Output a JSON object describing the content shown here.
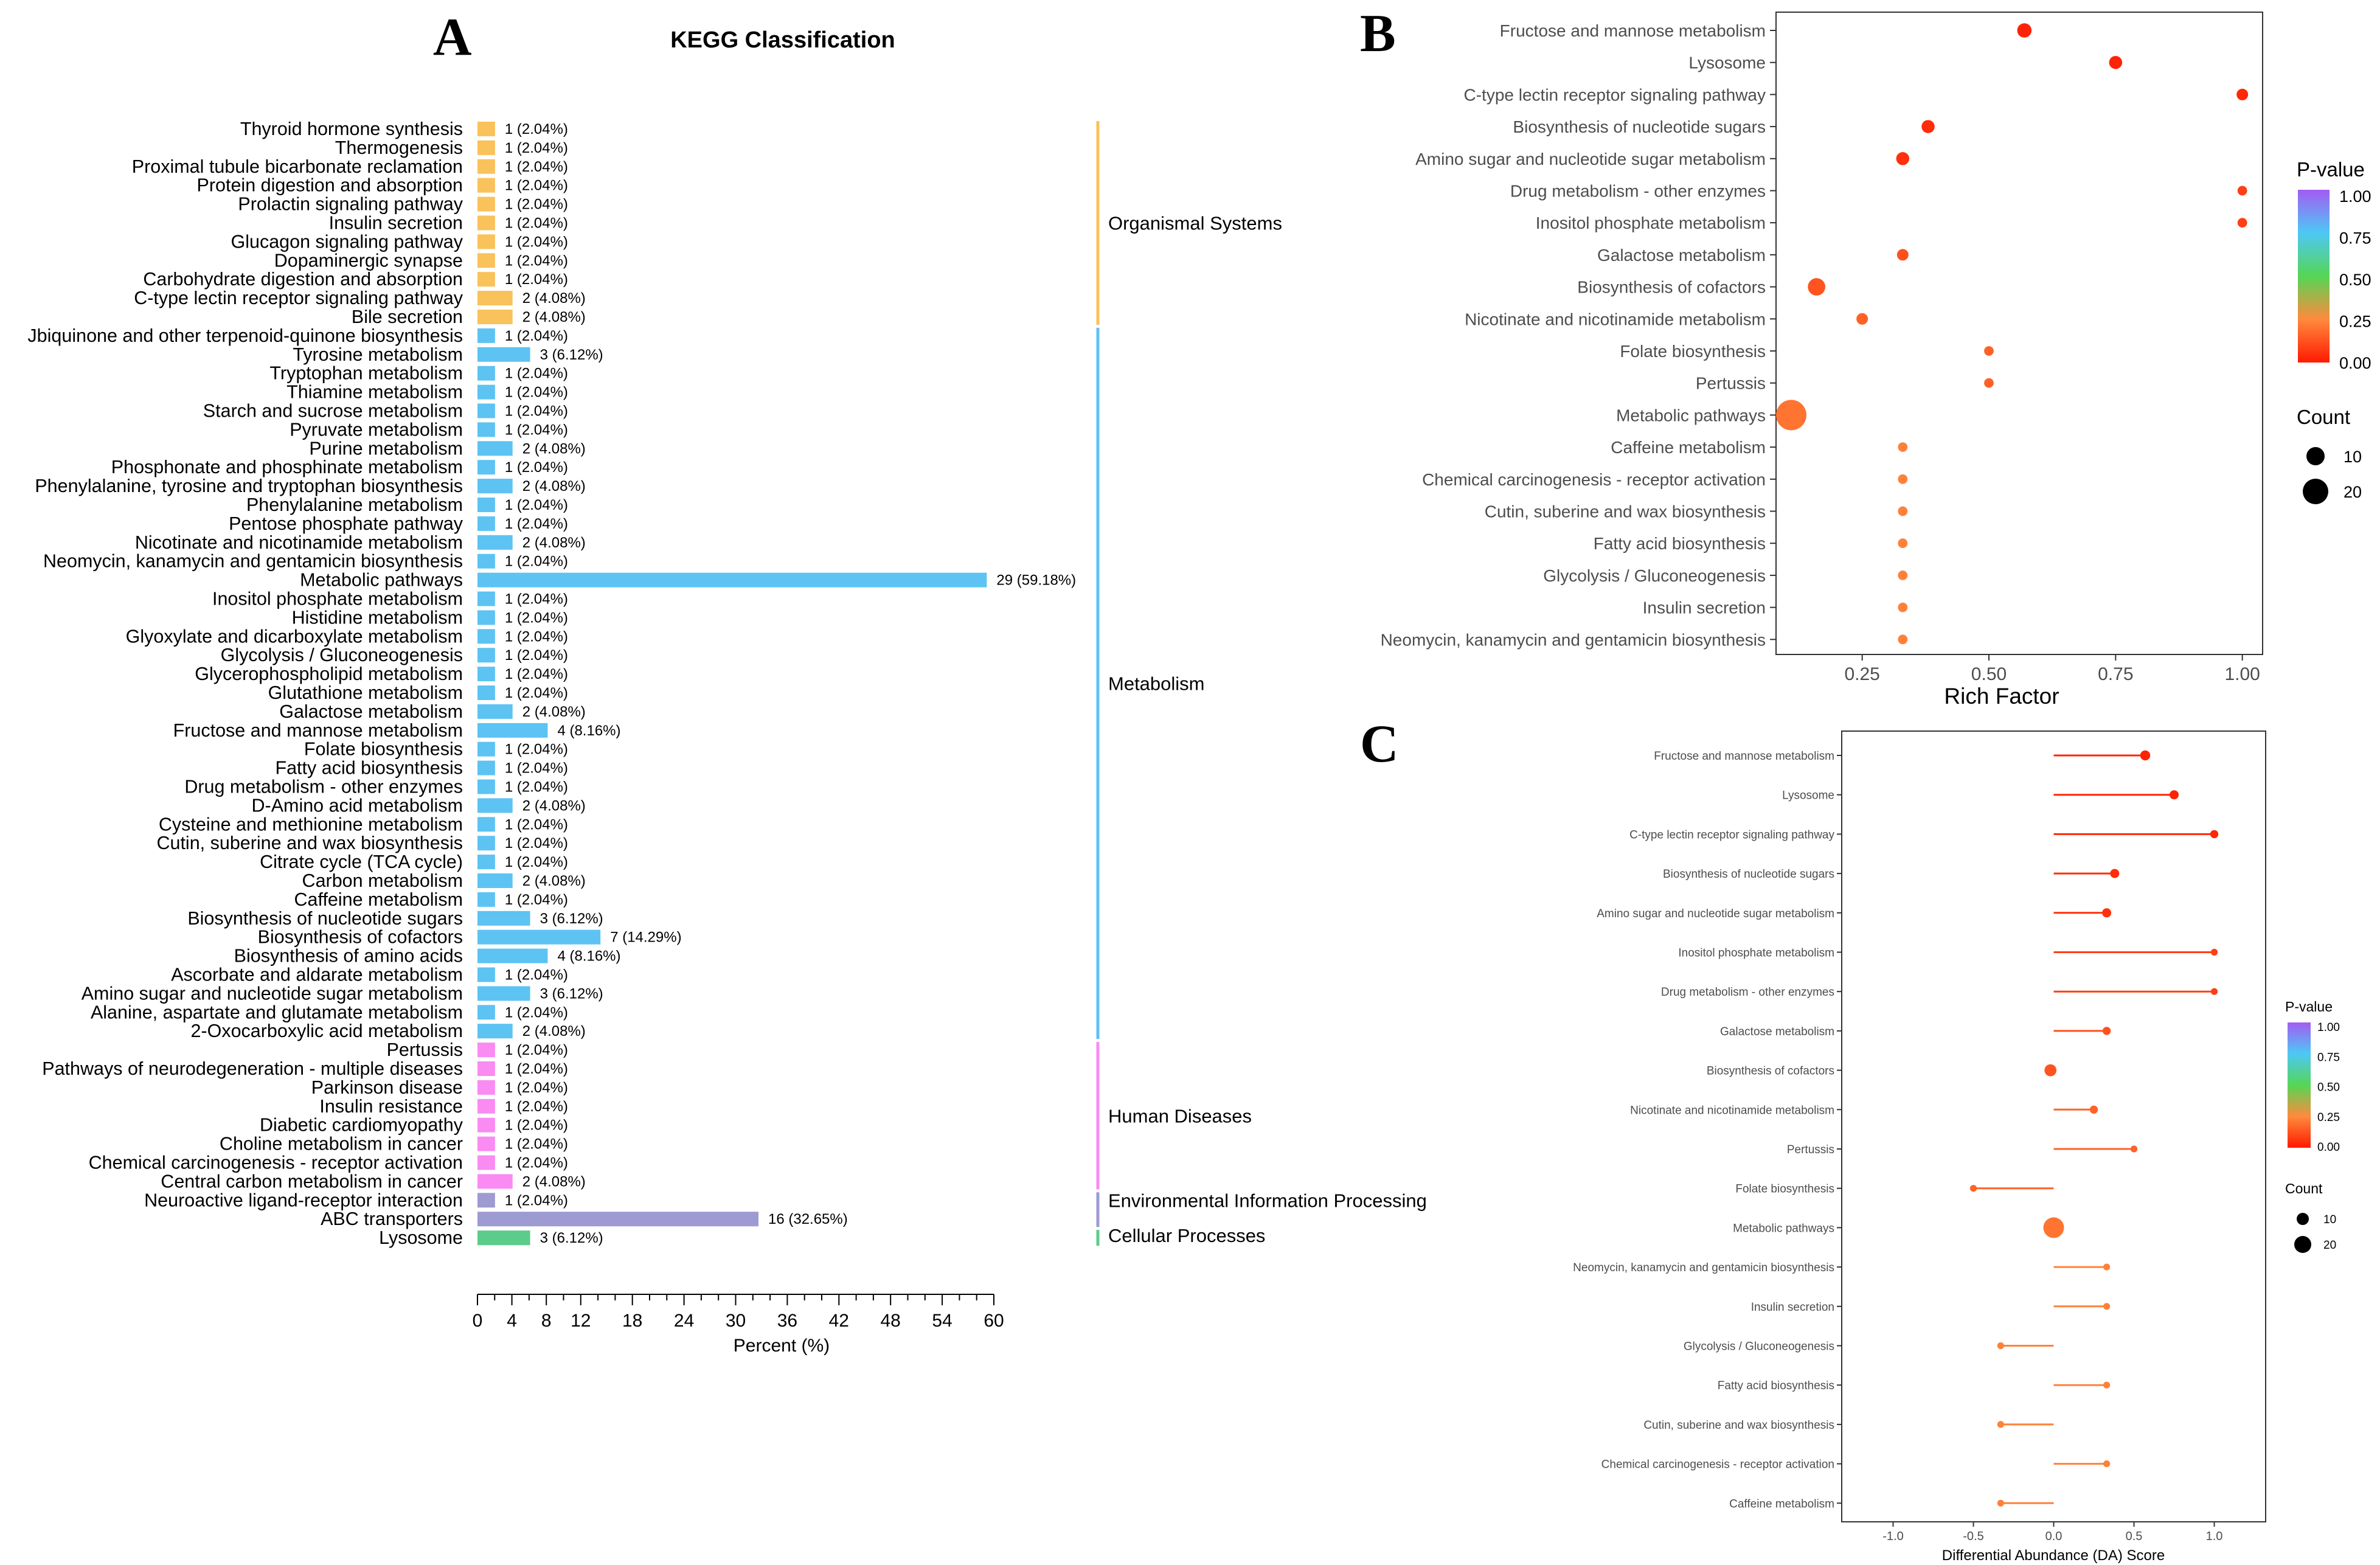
{
  "figure": {
    "letters": [
      "A",
      "B",
      "C"
    ]
  },
  "chart_data": [
    {
      "panel": "A",
      "type": "bar",
      "orientation": "horizontal",
      "title": "KEGG Classification",
      "xlabel": "Percent (%)",
      "xlim": [
        0,
        60
      ],
      "xticks": [
        0,
        4,
        8,
        12,
        18,
        24,
        30,
        36,
        42,
        48,
        54,
        60
      ],
      "colors": {
        "Organismal Systems": "#f9c25a",
        "Metabolism": "#5dc3f3",
        "Human Diseases": "#f98bf2",
        "Environmental Information Processing": "#9e9ad2",
        "Cellular Processes": "#5ccc8a"
      },
      "groups": [
        {
          "name": "Organismal Systems",
          "items": [
            {
              "label": "Thyroid hormone synthesis",
              "value": 2.04,
              "text": "1 (2.04%)"
            },
            {
              "label": "Thermogenesis",
              "value": 2.04,
              "text": "1 (2.04%)"
            },
            {
              "label": "Proximal tubule bicarbonate reclamation",
              "value": 2.04,
              "text": "1 (2.04%)"
            },
            {
              "label": "Protein digestion and absorption",
              "value": 2.04,
              "text": "1 (2.04%)"
            },
            {
              "label": "Prolactin signaling pathway",
              "value": 2.04,
              "text": "1 (2.04%)"
            },
            {
              "label": "Insulin secretion",
              "value": 2.04,
              "text": "1 (2.04%)"
            },
            {
              "label": "Glucagon signaling pathway",
              "value": 2.04,
              "text": "1 (2.04%)"
            },
            {
              "label": "Dopaminergic synapse",
              "value": 2.04,
              "text": "1 (2.04%)"
            },
            {
              "label": "Carbohydrate digestion and absorption",
              "value": 2.04,
              "text": "1 (2.04%)"
            },
            {
              "label": "C-type lectin receptor signaling pathway",
              "value": 4.08,
              "text": "2 (4.08%)"
            },
            {
              "label": "Bile secretion",
              "value": 4.08,
              "text": "2 (4.08%)"
            }
          ]
        },
        {
          "name": "Metabolism",
          "items": [
            {
              "label": "Jbiquinone and other terpenoid-quinone biosynthesis",
              "value": 2.04,
              "text": "1 (2.04%)"
            },
            {
              "label": "Tyrosine metabolism",
              "value": 6.12,
              "text": "3 (6.12%)"
            },
            {
              "label": "Tryptophan metabolism",
              "value": 2.04,
              "text": "1 (2.04%)"
            },
            {
              "label": "Thiamine metabolism",
              "value": 2.04,
              "text": "1 (2.04%)"
            },
            {
              "label": "Starch and sucrose metabolism",
              "value": 2.04,
              "text": "1 (2.04%)"
            },
            {
              "label": "Pyruvate metabolism",
              "value": 2.04,
              "text": "1 (2.04%)"
            },
            {
              "label": "Purine metabolism",
              "value": 4.08,
              "text": "2 (4.08%)"
            },
            {
              "label": "Phosphonate and phosphinate metabolism",
              "value": 2.04,
              "text": "1 (2.04%)"
            },
            {
              "label": "Phenylalanine, tyrosine and tryptophan biosynthesis",
              "value": 4.08,
              "text": "2 (4.08%)"
            },
            {
              "label": "Phenylalanine metabolism",
              "value": 2.04,
              "text": "1 (2.04%)"
            },
            {
              "label": "Pentose phosphate pathway",
              "value": 2.04,
              "text": "1 (2.04%)"
            },
            {
              "label": "Nicotinate and nicotinamide metabolism",
              "value": 4.08,
              "text": "2 (4.08%)"
            },
            {
              "label": "Neomycin, kanamycin and gentamicin biosynthesis",
              "value": 2.04,
              "text": "1 (2.04%)"
            },
            {
              "label": "Metabolic pathways",
              "value": 59.18,
              "text": "29 (59.18%)"
            },
            {
              "label": "Inositol phosphate metabolism",
              "value": 2.04,
              "text": "1 (2.04%)"
            },
            {
              "label": "Histidine metabolism",
              "value": 2.04,
              "text": "1 (2.04%)"
            },
            {
              "label": "Glyoxylate and dicarboxylate metabolism",
              "value": 2.04,
              "text": "1 (2.04%)"
            },
            {
              "label": "Glycolysis / Gluconeogenesis",
              "value": 2.04,
              "text": "1 (2.04%)"
            },
            {
              "label": "Glycerophospholipid metabolism",
              "value": 2.04,
              "text": "1 (2.04%)"
            },
            {
              "label": "Glutathione metabolism",
              "value": 2.04,
              "text": "1 (2.04%)"
            },
            {
              "label": "Galactose metabolism",
              "value": 4.08,
              "text": "2 (4.08%)"
            },
            {
              "label": "Fructose and mannose metabolism",
              "value": 8.16,
              "text": "4 (8.16%)"
            },
            {
              "label": "Folate biosynthesis",
              "value": 2.04,
              "text": "1 (2.04%)"
            },
            {
              "label": "Fatty acid biosynthesis",
              "value": 2.04,
              "text": "1 (2.04%)"
            },
            {
              "label": "Drug metabolism - other enzymes",
              "value": 2.04,
              "text": "1 (2.04%)"
            },
            {
              "label": "D-Amino acid metabolism",
              "value": 4.08,
              "text": "2 (4.08%)"
            },
            {
              "label": "Cysteine and methionine metabolism",
              "value": 2.04,
              "text": "1 (2.04%)"
            },
            {
              "label": "Cutin, suberine and wax biosynthesis",
              "value": 2.04,
              "text": "1 (2.04%)"
            },
            {
              "label": "Citrate cycle (TCA cycle)",
              "value": 2.04,
              "text": "1 (2.04%)"
            },
            {
              "label": "Carbon metabolism",
              "value": 4.08,
              "text": "2 (4.08%)"
            },
            {
              "label": "Caffeine metabolism",
              "value": 2.04,
              "text": "1 (2.04%)"
            },
            {
              "label": "Biosynthesis of nucleotide sugars",
              "value": 6.12,
              "text": "3 (6.12%)"
            },
            {
              "label": "Biosynthesis of cofactors",
              "value": 14.29,
              "text": "7 (14.29%)"
            },
            {
              "label": "Biosynthesis of amino acids",
              "value": 8.16,
              "text": "4 (8.16%)"
            },
            {
              "label": "Ascorbate and aldarate metabolism",
              "value": 2.04,
              "text": "1 (2.04%)"
            },
            {
              "label": "Amino sugar and nucleotide sugar metabolism",
              "value": 6.12,
              "text": "3 (6.12%)"
            },
            {
              "label": "Alanine, aspartate and glutamate metabolism",
              "value": 2.04,
              "text": "1 (2.04%)"
            },
            {
              "label": "2-Oxocarboxylic acid metabolism",
              "value": 4.08,
              "text": "2 (4.08%)"
            }
          ]
        },
        {
          "name": "Human Diseases",
          "items": [
            {
              "label": "Pertussis",
              "value": 2.04,
              "text": "1 (2.04%)"
            },
            {
              "label": "Pathways of neurodegeneration - multiple diseases",
              "value": 2.04,
              "text": "1 (2.04%)"
            },
            {
              "label": "Parkinson disease",
              "value": 2.04,
              "text": "1 (2.04%)"
            },
            {
              "label": "Insulin resistance",
              "value": 2.04,
              "text": "1 (2.04%)"
            },
            {
              "label": "Diabetic cardiomyopathy",
              "value": 2.04,
              "text": "1 (2.04%)"
            },
            {
              "label": "Choline metabolism in cancer",
              "value": 2.04,
              "text": "1 (2.04%)"
            },
            {
              "label": "Chemical carcinogenesis - receptor activation",
              "value": 2.04,
              "text": "1 (2.04%)"
            },
            {
              "label": "Central carbon metabolism in cancer",
              "value": 4.08,
              "text": "2 (4.08%)"
            }
          ]
        },
        {
          "name": "Environmental Information Processing",
          "items": [
            {
              "label": "Neuroactive ligand-receptor interaction",
              "value": 2.04,
              "text": "1 (2.04%)"
            },
            {
              "label": "ABC transporters",
              "value": 32.65,
              "text": "16 (32.65%)"
            }
          ]
        },
        {
          "name": "Cellular Processes",
          "items": [
            {
              "label": "Lysosome",
              "value": 6.12,
              "text": "3 (6.12%)"
            }
          ]
        }
      ]
    },
    {
      "panel": "B",
      "type": "scatter",
      "xlabel": "Rich Factor",
      "xlim": [
        0.08,
        1.04
      ],
      "xticks": [
        "0.25",
        "0.50",
        "0.75",
        "1.00"
      ],
      "legend": {
        "color_title": "P-value",
        "color_ticks": [
          "1.00",
          "0.75",
          "0.50",
          "0.25",
          "0.00"
        ],
        "size_title": "Count",
        "size_ticks": [
          "10",
          "20"
        ]
      },
      "points": [
        {
          "pathway": "Fructose and mannose metabolism",
          "rich": 0.57,
          "count": 4,
          "p": 0.02
        },
        {
          "pathway": "Lysosome",
          "rich": 0.75,
          "count": 3,
          "p": 0.02
        },
        {
          "pathway": "C-type lectin receptor signaling pathway",
          "rich": 1.0,
          "count": 2,
          "p": 0.03
        },
        {
          "pathway": "Biosynthesis of nucleotide sugars",
          "rich": 0.38,
          "count": 3,
          "p": 0.04
        },
        {
          "pathway": "Amino sugar and nucleotide sugar metabolism",
          "rich": 0.33,
          "count": 3,
          "p": 0.05
        },
        {
          "pathway": "Drug metabolism - other enzymes",
          "rich": 1.0,
          "count": 1,
          "p": 0.08
        },
        {
          "pathway": "Inositol phosphate metabolism",
          "rich": 1.0,
          "count": 1,
          "p": 0.08
        },
        {
          "pathway": "Galactose metabolism",
          "rich": 0.33,
          "count": 2,
          "p": 0.12
        },
        {
          "pathway": "Biosynthesis of cofactors",
          "rich": 0.16,
          "count": 7,
          "p": 0.13
        },
        {
          "pathway": "Nicotinate and nicotinamide metabolism",
          "rich": 0.25,
          "count": 2,
          "p": 0.16
        },
        {
          "pathway": "Folate biosynthesis",
          "rich": 0.5,
          "count": 1,
          "p": 0.16
        },
        {
          "pathway": "Pertussis",
          "rich": 0.5,
          "count": 1,
          "p": 0.16
        },
        {
          "pathway": "Metabolic pathways",
          "rich": 0.11,
          "count": 29,
          "p": 0.2
        },
        {
          "pathway": "Caffeine metabolism",
          "rich": 0.33,
          "count": 1,
          "p": 0.23
        },
        {
          "pathway": "Chemical carcinogenesis - receptor activation",
          "rich": 0.33,
          "count": 1,
          "p": 0.23
        },
        {
          "pathway": "Cutin, suberine and wax biosynthesis",
          "rich": 0.33,
          "count": 1,
          "p": 0.23
        },
        {
          "pathway": "Fatty acid biosynthesis",
          "rich": 0.33,
          "count": 1,
          "p": 0.23
        },
        {
          "pathway": "Glycolysis / Gluconeogenesis",
          "rich": 0.33,
          "count": 1,
          "p": 0.23
        },
        {
          "pathway": "Insulin secretion",
          "rich": 0.33,
          "count": 1,
          "p": 0.23
        },
        {
          "pathway": "Neomycin, kanamycin and gentamicin biosynthesis",
          "rich": 0.33,
          "count": 1,
          "p": 0.23
        }
      ]
    },
    {
      "panel": "C",
      "type": "lollipop",
      "xlabel": "Differential Abundance (DA) Score",
      "xlim": [
        -1.32,
        1.32
      ],
      "xticks": [
        "-1.0",
        "-0.5",
        "0.0",
        "0.5",
        "1.0"
      ],
      "legend": {
        "color_title": "P-value",
        "color_ticks": [
          "1.00",
          "0.75",
          "0.50",
          "0.25",
          "0.00"
        ],
        "size_title": "Count",
        "size_ticks": [
          "10",
          "20"
        ]
      },
      "points": [
        {
          "pathway": "Fructose and mannose metabolism",
          "da": 0.57,
          "count": 4,
          "p": 0.02
        },
        {
          "pathway": "Lysosome",
          "da": 0.75,
          "count": 3,
          "p": 0.02
        },
        {
          "pathway": "C-type lectin receptor signaling pathway",
          "da": 1.0,
          "count": 2,
          "p": 0.03
        },
        {
          "pathway": "Biosynthesis of nucleotide sugars",
          "da": 0.38,
          "count": 3,
          "p": 0.04
        },
        {
          "pathway": "Amino sugar and nucleotide sugar metabolism",
          "da": 0.33,
          "count": 3,
          "p": 0.05
        },
        {
          "pathway": "Inositol phosphate metabolism",
          "da": 1.0,
          "count": 1,
          "p": 0.08
        },
        {
          "pathway": "Drug metabolism - other enzymes",
          "da": 1.0,
          "count": 1,
          "p": 0.08
        },
        {
          "pathway": "Galactose metabolism",
          "da": 0.33,
          "count": 2,
          "p": 0.12
        },
        {
          "pathway": "Biosynthesis of cofactors",
          "da": -0.02,
          "count": 7,
          "p": 0.13
        },
        {
          "pathway": "Nicotinate and nicotinamide metabolism",
          "da": 0.25,
          "count": 2,
          "p": 0.16
        },
        {
          "pathway": "Pertussis",
          "da": 0.5,
          "count": 1,
          "p": 0.16
        },
        {
          "pathway": "Folate biosynthesis",
          "da": -0.5,
          "count": 1,
          "p": 0.16
        },
        {
          "pathway": "Metabolic pathways",
          "da": 0.0,
          "count": 29,
          "p": 0.2
        },
        {
          "pathway": "Neomycin, kanamycin and gentamicin biosynthesis",
          "da": 0.33,
          "count": 1,
          "p": 0.23
        },
        {
          "pathway": "Insulin secretion",
          "da": 0.33,
          "count": 1,
          "p": 0.23
        },
        {
          "pathway": "Glycolysis / Gluconeogenesis",
          "da": -0.33,
          "count": 1,
          "p": 0.23
        },
        {
          "pathway": "Fatty acid biosynthesis",
          "da": 0.33,
          "count": 1,
          "p": 0.23
        },
        {
          "pathway": "Cutin, suberine and wax biosynthesis",
          "da": -0.33,
          "count": 1,
          "p": 0.23
        },
        {
          "pathway": "Chemical carcinogenesis - receptor activation",
          "da": 0.33,
          "count": 1,
          "p": 0.23
        },
        {
          "pathway": "Caffeine metabolism",
          "da": -0.33,
          "count": 1,
          "p": 0.23
        }
      ]
    }
  ]
}
